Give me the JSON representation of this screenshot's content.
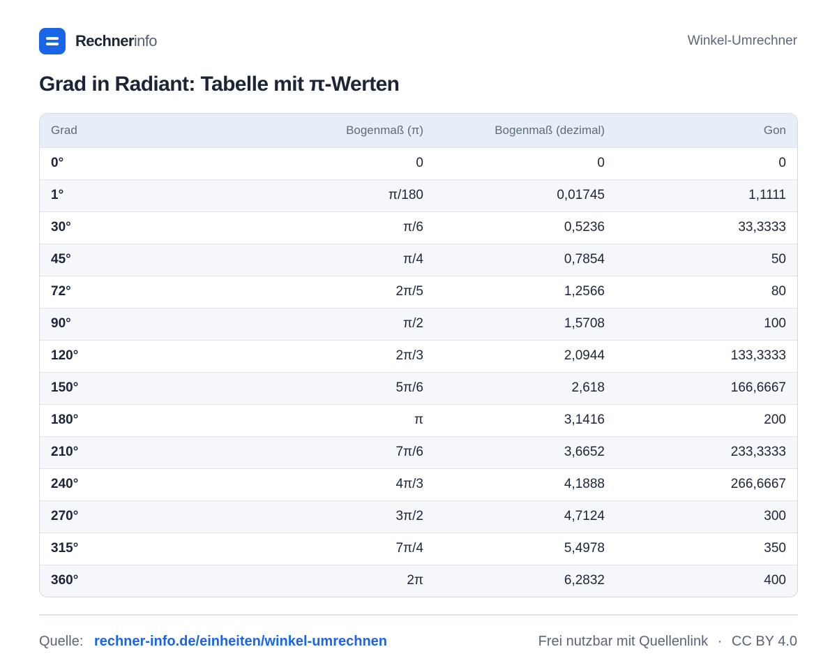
{
  "header": {
    "brand_bold": "Rechner",
    "brand_light": "info",
    "nav_title": "Winkel-Umrechner",
    "logo_icon": "list-icon",
    "accent_color": "#1a64e8"
  },
  "title": "Grad in Radiant: Tabelle mit π-Werten",
  "table": {
    "columns": [
      "Grad",
      "Bogenmaß (π)",
      "Bogenmaß (dezimal)",
      "Gon"
    ],
    "rows": [
      [
        "0°",
        "0",
        "0",
        "0"
      ],
      [
        "1°",
        "π/180",
        "0,01745",
        "1,1111"
      ],
      [
        "30°",
        "π/6",
        "0,5236",
        "33,3333"
      ],
      [
        "45°",
        "π/4",
        "0,7854",
        "50"
      ],
      [
        "72°",
        "2π/5",
        "1,2566",
        "80"
      ],
      [
        "90°",
        "π/2",
        "1,5708",
        "100"
      ],
      [
        "120°",
        "2π/3",
        "2,0944",
        "133,3333"
      ],
      [
        "150°",
        "5π/6",
        "2,618",
        "166,6667"
      ],
      [
        "180°",
        "π",
        "3,1416",
        "200"
      ],
      [
        "210°",
        "7π/6",
        "3,6652",
        "233,3333"
      ],
      [
        "240°",
        "4π/3",
        "4,1888",
        "266,6667"
      ],
      [
        "270°",
        "3π/2",
        "4,7124",
        "300"
      ],
      [
        "315°",
        "7π/4",
        "5,4978",
        "350"
      ],
      [
        "360°",
        "2π",
        "6,2832",
        "400"
      ]
    ]
  },
  "footer": {
    "source_label": "Quelle:",
    "source_link": "rechner-info.de/einheiten/winkel-umrechnen",
    "license_text": "Frei nutzbar mit Quellenlink",
    "separator": "·",
    "license": "CC BY 4.0"
  }
}
